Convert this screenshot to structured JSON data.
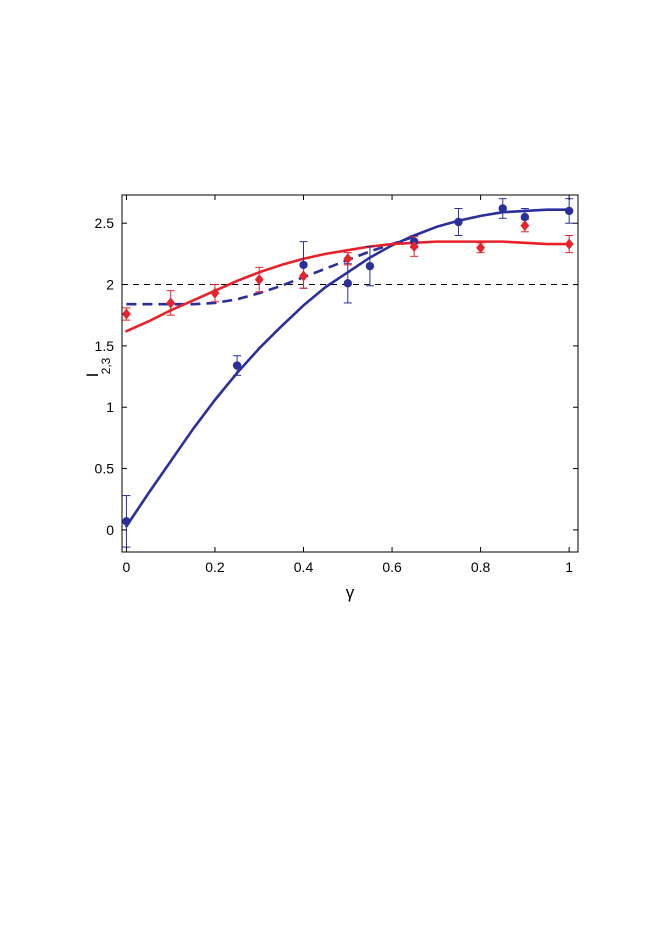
{
  "chart_data": {
    "type": "scatter",
    "title": "",
    "xlabel": "γ",
    "ylabel_main": "I",
    "ylabel_sub": "2,3",
    "xlim": [
      -0.01,
      1.02
    ],
    "ylim": [
      -0.18,
      2.73
    ],
    "xticks": [
      0,
      0.2,
      0.4,
      0.6,
      0.8,
      1
    ],
    "xtick_labels": [
      "0",
      "0.2",
      "0.4",
      "0.6",
      "0.8",
      "1"
    ],
    "yticks": [
      0,
      0.5,
      1,
      1.5,
      2,
      2.5
    ],
    "ytick_labels": [
      "0",
      "0.5",
      "1",
      "1.5",
      "2",
      "2.5"
    ],
    "grid": false,
    "reference_line": {
      "y": 2,
      "style": "dashed",
      "color": "#000000"
    },
    "series": [
      {
        "kind": "points",
        "marker": "circle",
        "color": "#2b2f9b",
        "points": [
          {
            "x": 0.0,
            "y": 0.07,
            "err": 0.21
          },
          {
            "x": 0.25,
            "y": 1.34,
            "err": 0.08
          },
          {
            "x": 0.4,
            "y": 2.16,
            "err": 0.19
          },
          {
            "x": 0.5,
            "y": 2.01,
            "err": 0.16
          },
          {
            "x": 0.55,
            "y": 2.15,
            "err": 0.16
          },
          {
            "x": 0.65,
            "y": 2.35,
            "err": 0.05
          },
          {
            "x": 0.75,
            "y": 2.51,
            "err": 0.11
          },
          {
            "x": 0.85,
            "y": 2.62,
            "err": 0.08
          },
          {
            "x": 0.9,
            "y": 2.55,
            "err": 0.07
          },
          {
            "x": 1.0,
            "y": 2.6,
            "err": 0.1
          }
        ]
      },
      {
        "kind": "points",
        "marker": "diamond",
        "color": "#e8222a",
        "points": [
          {
            "x": 0.0,
            "y": 1.76,
            "err": 0.05
          },
          {
            "x": 0.1,
            "y": 1.85,
            "err": 0.1
          },
          {
            "x": 0.2,
            "y": 1.93,
            "err": 0.07
          },
          {
            "x": 0.3,
            "y": 2.04,
            "err": 0.1
          },
          {
            "x": 0.4,
            "y": 2.07,
            "err": 0.1
          },
          {
            "x": 0.5,
            "y": 2.21,
            "err": 0.05
          },
          {
            "x": 0.65,
            "y": 2.31,
            "err": 0.08
          },
          {
            "x": 0.8,
            "y": 2.3,
            "err": 0.04
          },
          {
            "x": 0.9,
            "y": 2.48,
            "err": 0.05
          },
          {
            "x": 1.0,
            "y": 2.33,
            "err": 0.07
          }
        ]
      },
      {
        "kind": "line",
        "style": "solid",
        "color": "#2b2f9b",
        "x": [
          0,
          0.05,
          0.1,
          0.15,
          0.2,
          0.25,
          0.3,
          0.35,
          0.4,
          0.45,
          0.5,
          0.55,
          0.6,
          0.65,
          0.7,
          0.75,
          0.8,
          0.85,
          0.9,
          0.95,
          1.0
        ],
        "y": [
          0.03,
          0.3,
          0.56,
          0.82,
          1.06,
          1.28,
          1.48,
          1.66,
          1.83,
          1.98,
          2.1,
          2.22,
          2.32,
          2.4,
          2.47,
          2.52,
          2.56,
          2.59,
          2.6,
          2.61,
          2.61
        ]
      },
      {
        "kind": "line",
        "style": "dashed",
        "color": "#2b2f9b",
        "x": [
          0,
          0.05,
          0.1,
          0.15,
          0.2,
          0.25,
          0.3,
          0.35,
          0.4,
          0.45,
          0.5,
          0.55,
          0.6,
          0.65
        ],
        "y": [
          1.84,
          1.84,
          1.84,
          1.84,
          1.85,
          1.88,
          1.93,
          1.99,
          2.06,
          2.13,
          2.2,
          2.27,
          2.33,
          2.39
        ]
      },
      {
        "kind": "line",
        "style": "solid",
        "color": "#e8222a",
        "x": [
          0,
          0.05,
          0.1,
          0.15,
          0.2,
          0.25,
          0.3,
          0.35,
          0.4,
          0.45,
          0.5,
          0.55,
          0.6,
          0.65,
          0.7,
          0.75,
          0.8,
          0.85,
          0.9,
          0.95,
          1.0
        ],
        "y": [
          1.62,
          1.7,
          1.79,
          1.87,
          1.95,
          2.03,
          2.1,
          2.16,
          2.21,
          2.25,
          2.28,
          2.31,
          2.33,
          2.34,
          2.35,
          2.35,
          2.35,
          2.35,
          2.34,
          2.33,
          2.33
        ]
      }
    ]
  }
}
